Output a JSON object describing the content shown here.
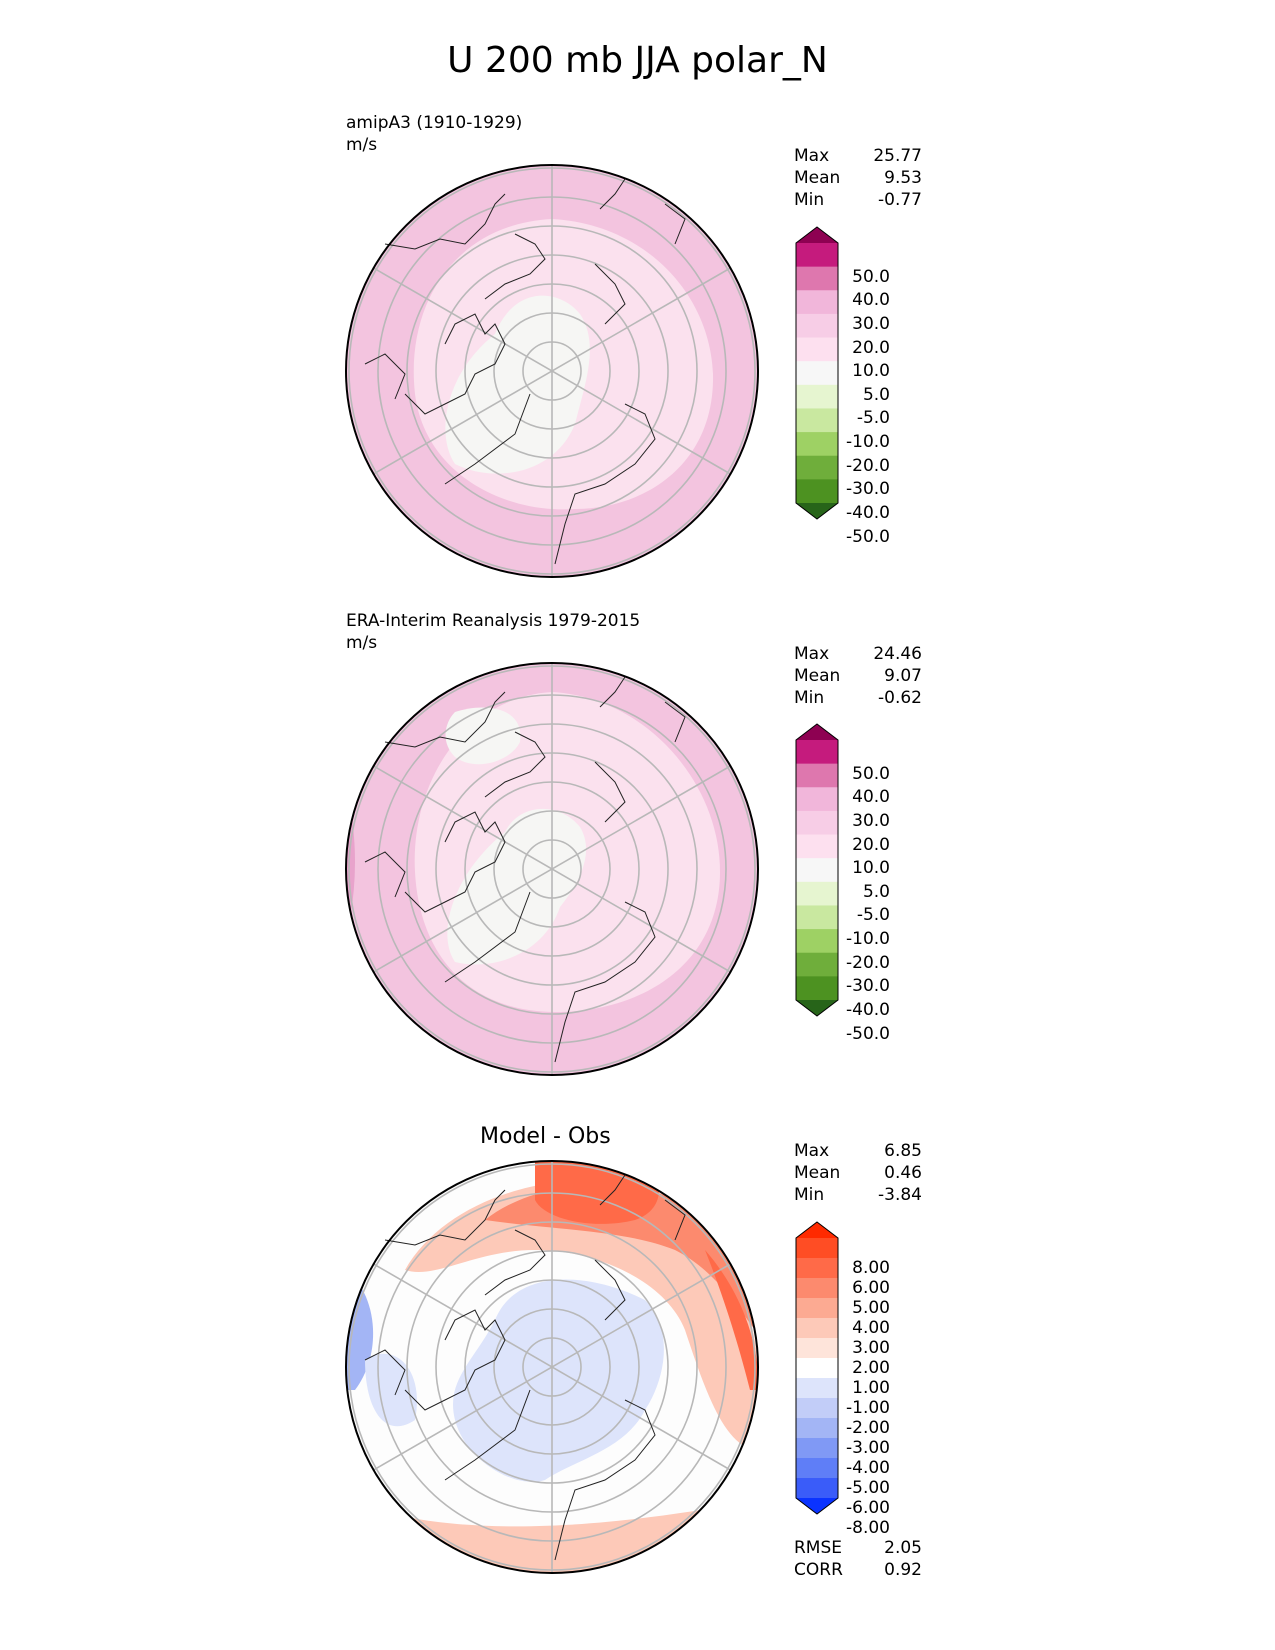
{
  "title": "U 200 mb JJA polar_N",
  "panels": [
    {
      "id": "model",
      "label": "amipA3 (1910-1929)",
      "units": "m/s",
      "stats": {
        "max_label": "Max",
        "max": "25.77",
        "mean_label": "Mean",
        "mean": "9.53",
        "min_label": "Min",
        "min": "-0.77"
      },
      "colorbar": {
        "labels": [
          "50.0",
          "40.0",
          "30.0",
          "20.0",
          "10.0",
          "5.0",
          "-5.0",
          "-10.0",
          "-20.0",
          "-30.0",
          "-40.0",
          "-50.0"
        ],
        "colors": [
          "#8e0152",
          "#c51b7d",
          "#de77ae",
          "#f1b6da",
          "#f7cde6",
          "#fde0ef",
          "#f7f7f7",
          "#e6f5d0",
          "#c9e8a0",
          "#9ed164",
          "#6fae3b",
          "#4d9221",
          "#276419"
        ]
      }
    },
    {
      "id": "obs",
      "label": "ERA-Interim Reanalysis 1979-2015",
      "units": "m/s",
      "stats": {
        "max_label": "Max",
        "max": "24.46",
        "mean_label": "Mean",
        "mean": "9.07",
        "min_label": "Min",
        "min": "-0.62"
      },
      "colorbar": {
        "labels": [
          "50.0",
          "40.0",
          "30.0",
          "20.0",
          "10.0",
          "5.0",
          "-5.0",
          "-10.0",
          "-20.0",
          "-30.0",
          "-40.0",
          "-50.0"
        ],
        "colors": [
          "#8e0152",
          "#c51b7d",
          "#de77ae",
          "#f1b6da",
          "#f7cde6",
          "#fde0ef",
          "#f7f7f7",
          "#e6f5d0",
          "#c9e8a0",
          "#9ed164",
          "#6fae3b",
          "#4d9221",
          "#276419"
        ]
      }
    },
    {
      "id": "diff",
      "title": "Model - Obs",
      "stats": {
        "max_label": "Max",
        "max": "6.85",
        "mean_label": "Mean",
        "mean": "0.46",
        "min_label": "Min",
        "min": "-3.84"
      },
      "metrics": {
        "rmse_label": "RMSE",
        "rmse": "2.05",
        "corr_label": "CORR",
        "corr": "0.92"
      },
      "colorbar": {
        "labels": [
          "8.00",
          "6.00",
          "5.00",
          "4.00",
          "3.00",
          "2.00",
          "1.00",
          "-1.00",
          "-2.00",
          "-3.00",
          "-4.00",
          "-5.00",
          "-6.00",
          "-8.00"
        ],
        "colors": [
          "#ff2a00",
          "#ff4d24",
          "#ff6a48",
          "#fc8a6e",
          "#fcaa92",
          "#fdc9b8",
          "#fee4da",
          "#ffffff",
          "#dde4fb",
          "#c2cdf8",
          "#a3b5f5",
          "#8099f5",
          "#5f7ef7",
          "#3a5cf9",
          "#0a33ff"
        ]
      }
    }
  ]
}
